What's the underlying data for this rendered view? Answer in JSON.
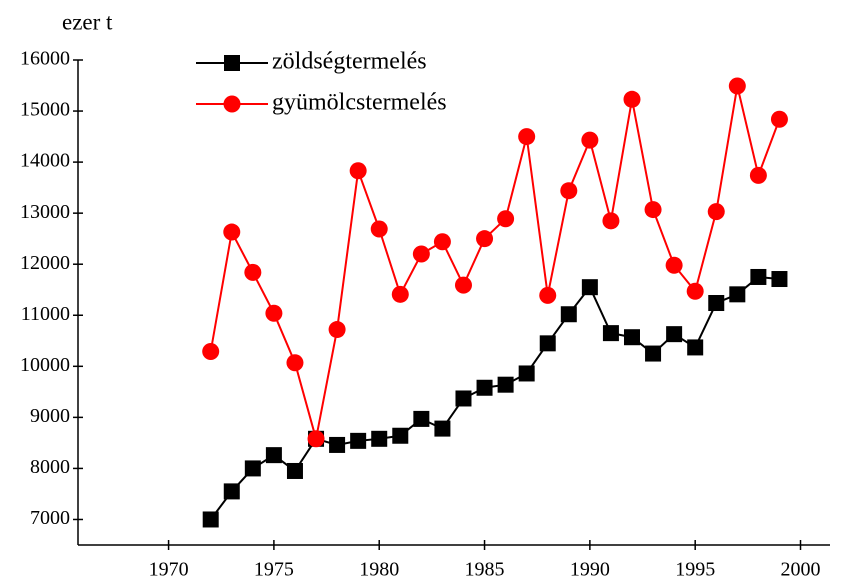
{
  "chart_data": {
    "type": "line",
    "ylabel": "ezer t",
    "x": [
      1972,
      1973,
      1974,
      1975,
      1976,
      1977,
      1978,
      1979,
      1980,
      1981,
      1982,
      1983,
      1984,
      1985,
      1986,
      1987,
      1988,
      1989,
      1990,
      1991,
      1992,
      1993,
      1994,
      1995,
      1996,
      1997,
      1998,
      1999
    ],
    "series": [
      {
        "name": "zöldségtermelés",
        "color": "#000000",
        "marker": "square",
        "values": [
          7000,
          7550,
          8000,
          8260,
          7950,
          8580,
          8460,
          8540,
          8580,
          8640,
          8970,
          8780,
          9370,
          9580,
          9640,
          9860,
          10450,
          11020,
          11550,
          10650,
          10570,
          10250,
          10630,
          10370,
          11240,
          11410,
          11750,
          11710
        ]
      },
      {
        "name": "gyümölcstermelés",
        "color": "#ff0000",
        "marker": "circle",
        "values": [
          10290,
          12630,
          11840,
          11040,
          10070,
          8580,
          10720,
          13830,
          12690,
          11410,
          12200,
          12440,
          11590,
          12500,
          12890,
          14500,
          11390,
          13440,
          14430,
          12850,
          15230,
          13070,
          11980,
          11470,
          13030,
          15490,
          13740,
          14840
        ]
      }
    ],
    "xlim": [
      1965.7,
      2001.4
    ],
    "xticks": [
      1970,
      1975,
      1980,
      1985,
      1990,
      1995,
      2000
    ],
    "ylim": [
      6500,
      16000
    ],
    "yticks": [
      7000,
      8000,
      9000,
      10000,
      11000,
      12000,
      13000,
      14000,
      15000,
      16000
    ],
    "grid": false,
    "legend": "top-left"
  }
}
